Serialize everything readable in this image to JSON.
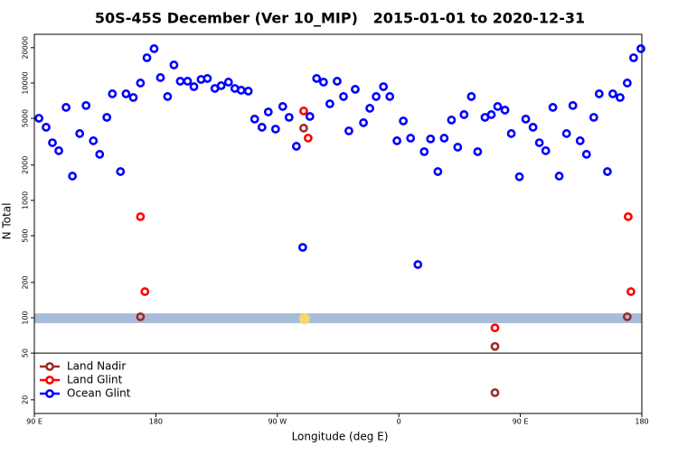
{
  "chart_data": {
    "type": "scatter",
    "title": "50S-45S December (Ver 10_MIP)   2015-01-01 to 2020-12-31",
    "x_label": "Longitude (deg E)",
    "y_label": "N Total",
    "log_y": true,
    "xlim": [
      90,
      540
    ],
    "ylim": [
      15.3,
      26000
    ],
    "xticks": [
      {
        "value": 90,
        "label": "90 E"
      },
      180,
      {
        "value": 270,
        "label": "90 W"
      },
      {
        "value": 360,
        "label": "0"
      },
      {
        "value": 450,
        "label": "90 E"
      },
      {
        "value": 540,
        "label": "180"
      }
    ],
    "yticks": [
      20,
      50,
      100,
      200,
      500,
      1000,
      2000,
      5000,
      10000,
      20000
    ],
    "reference_band": {
      "range": [
        90,
        109
      ],
      "color": "#a7bcd9"
    },
    "reference_line": 50,
    "highlight": {
      "x": 290.1,
      "y": 98,
      "color": "#f7d76a"
    },
    "legend": "lower left",
    "series": [
      {
        "name": "Land Nadir",
        "color": "#9b2c2c",
        "x": [
          168.6,
          289.5,
          431.2,
          431.2,
          529.2
        ],
        "values": [
          102,
          4125,
          57,
          23,
          102
        ]
      },
      {
        "name": "Land Glint",
        "color": "#ff0000",
        "x": [
          168.6,
          171.9,
          289.5,
          292.8,
          431.2,
          529.9,
          531.9
        ],
        "values": [
          727,
          167,
          5780,
          3394,
          82,
          727,
          167
        ]
      },
      {
        "name": "Ocean Glint",
        "color": "#0000ff",
        "x": [
          93.4,
          98.7,
          103.4,
          108.1,
          113.5,
          118.2,
          123.6,
          128.3,
          133.7,
          138.4,
          143.7,
          147.8,
          153.8,
          157.9,
          163.3,
          168.6,
          173.4,
          178.7,
          183.4,
          188.7,
          193.4,
          198.1,
          203.5,
          208.2,
          213.5,
          218.2,
          223.7,
          228.4,
          233.8,
          238.5,
          243.2,
          248.5,
          253.2,
          258.6,
          263.3,
          268.7,
          274.0,
          278.7,
          284.1,
          288.8,
          294.1,
          299.1,
          304.2,
          308.9,
          314.3,
          319.0,
          323.0,
          327.7,
          333.8,
          338.5,
          343.2,
          348.6,
          353.3,
          358.6,
          363.3,
          368.7,
          374.1,
          378.8,
          383.5,
          388.9,
          393.6,
          399.0,
          403.6,
          408.3,
          413.7,
          418.4,
          423.8,
          428.5,
          433.2,
          438.6,
          443.3,
          449.3,
          454.0,
          459.4,
          464.1,
          468.8,
          474.1,
          478.8,
          484.2,
          488.9,
          494.3,
          499.0,
          504.4,
          508.4,
          514.5,
          518.5,
          523.9,
          529.2,
          533.9,
          539.3
        ],
        "values": [
          5010,
          4200,
          3100,
          2650,
          6200,
          1610,
          3710,
          6430,
          3220,
          2470,
          5100,
          8090,
          1760,
          8090,
          7530,
          10000,
          16410,
          19600,
          11120,
          7670,
          14250,
          10360,
          10360,
          9310,
          10730,
          10930,
          8990,
          9490,
          10180,
          8990,
          8680,
          8530,
          4930,
          4200,
          5670,
          4050,
          6310,
          5100,
          2890,
          398,
          5190,
          10930,
          10180,
          6650,
          10360,
          7670,
          3910,
          8840,
          4590,
          6090,
          7670,
          9310,
          7670,
          3220,
          4750,
          3390,
          284,
          2600,
          3340,
          1760,
          3390,
          4840,
          2840,
          5380,
          7670,
          2600,
          5100,
          5380,
          6310,
          5880,
          3710,
          1590,
          4930,
          4200,
          3100,
          2650,
          6200,
          1610,
          3710,
          6430,
          3220,
          2470,
          5100,
          8090,
          1760,
          8090,
          7530,
          10000,
          16410,
          19600
        ]
      }
    ]
  }
}
